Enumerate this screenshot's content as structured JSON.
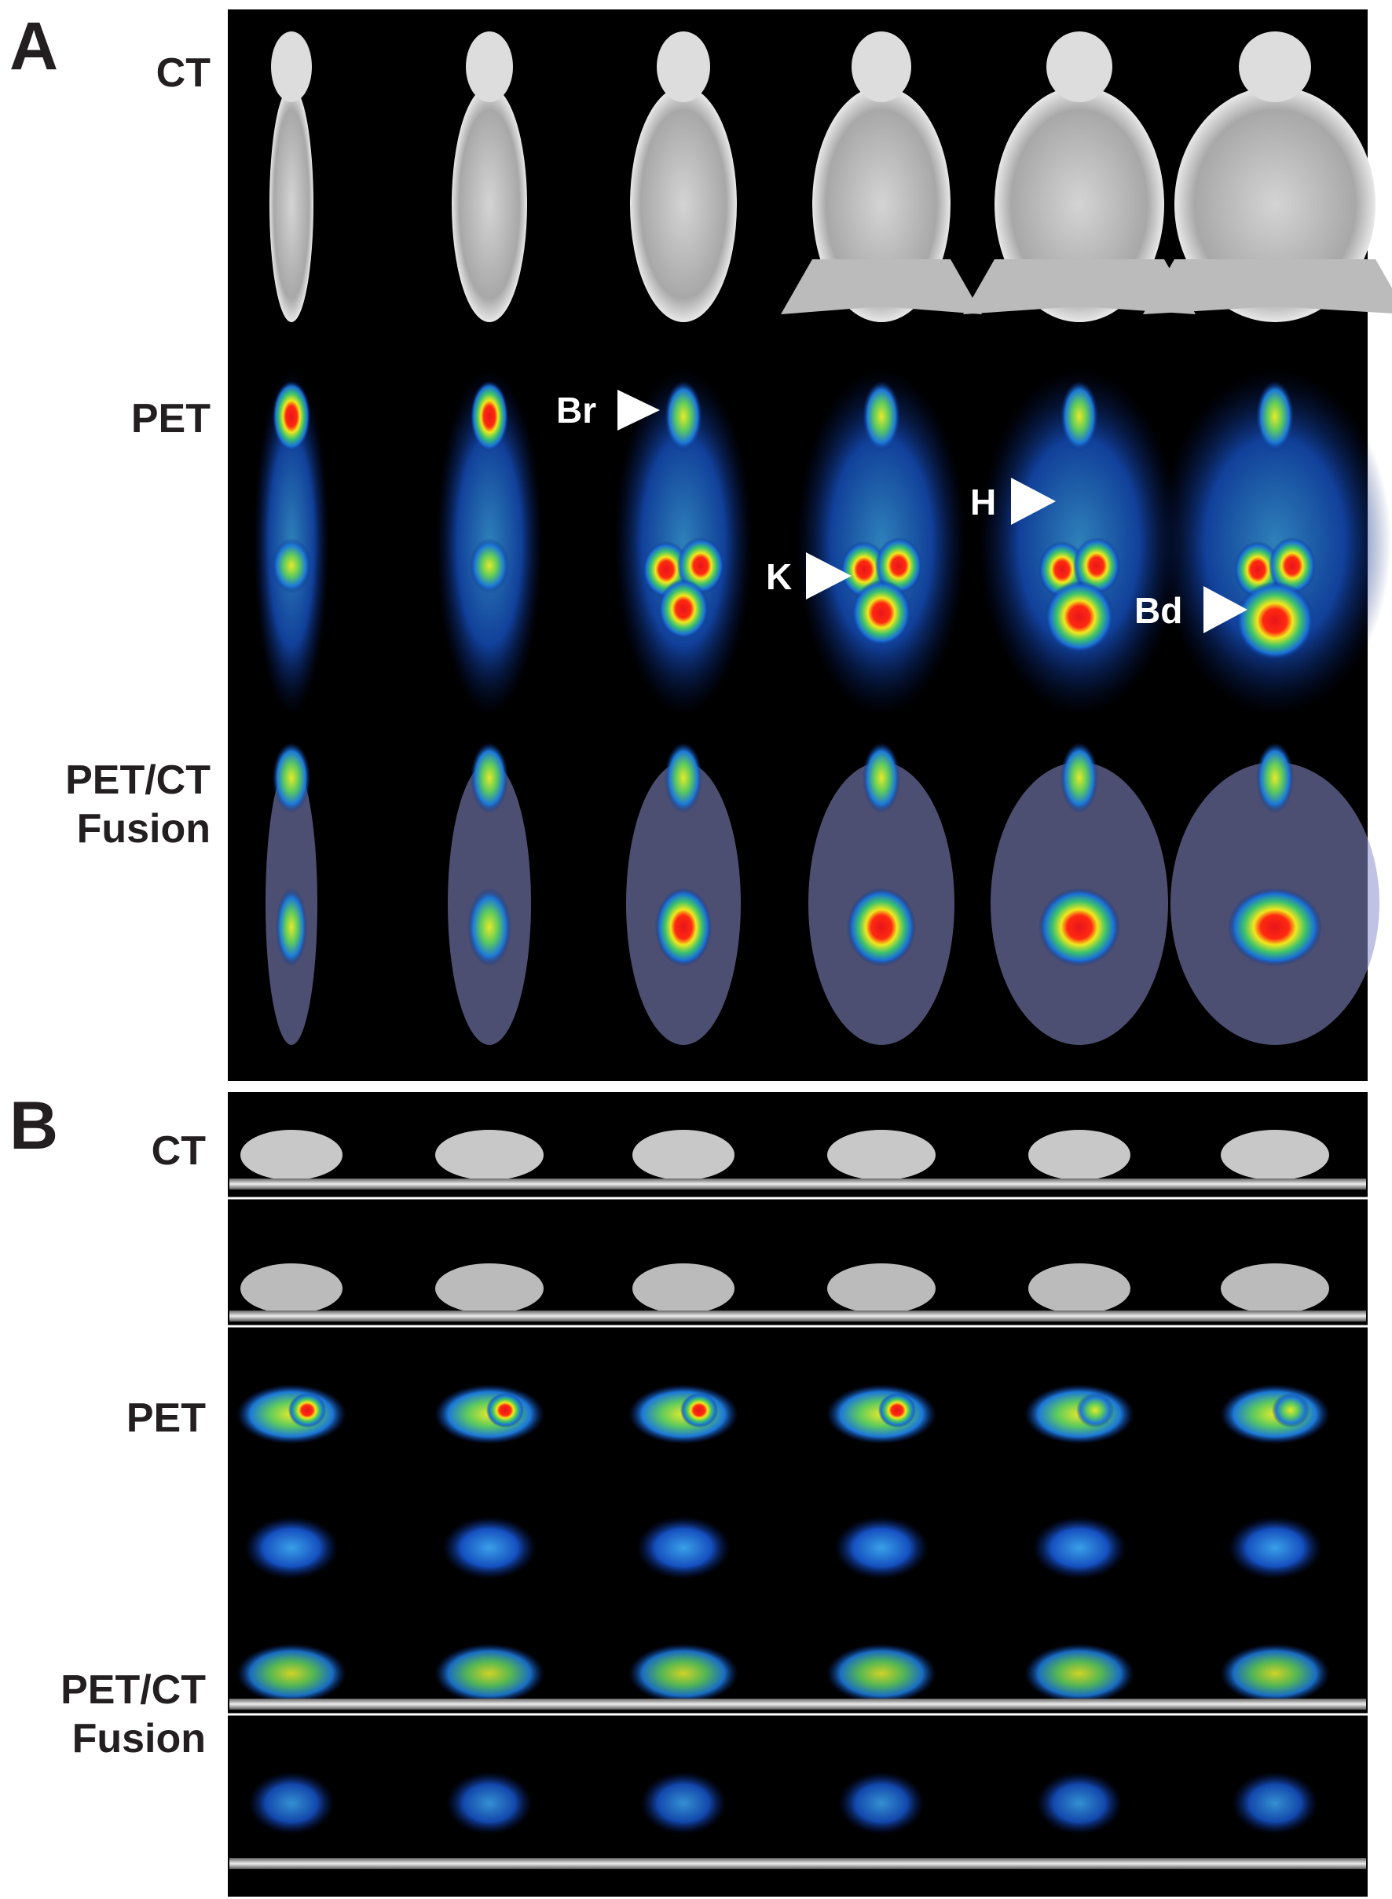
{
  "panel_a": {
    "label": "A",
    "rows": {
      "ct": "CT",
      "pet": "PET",
      "fusion": [
        "PET/CT",
        "Fusion"
      ]
    },
    "annotations": {
      "brain": "Br",
      "kidney": "K",
      "heart": "H",
      "bladder": "Bd"
    }
  },
  "panel_b": {
    "label": "B",
    "rows": {
      "ct": "CT",
      "pet": "PET",
      "fusion": [
        "PET/CT",
        "Fusion"
      ]
    }
  }
}
